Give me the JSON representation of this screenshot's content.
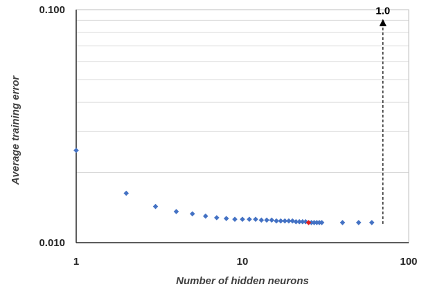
{
  "chart_data": {
    "type": "scatter",
    "title": "",
    "xlabel": "Number of hidden neurons",
    "ylabel": "Average training  error",
    "x_scale": "log",
    "y_scale": "log",
    "xlim": [
      1,
      100
    ],
    "ylim": [
      0.01,
      0.1
    ],
    "x_ticks": [
      1,
      10,
      100
    ],
    "x_tick_labels": [
      "1",
      "10",
      "100"
    ],
    "y_ticks": [
      0.01,
      0.1
    ],
    "y_tick_labels": [
      "0.010",
      "0.100"
    ],
    "grid": "horizontal minor gridlines",
    "legend": "none",
    "series": [
      {
        "color": "#4472c4",
        "marker": "diamond",
        "x": [
          1,
          2,
          3,
          4,
          5,
          6,
          7,
          8,
          9,
          10,
          11,
          12,
          13,
          14,
          15,
          16,
          17,
          18,
          19,
          20,
          21,
          22,
          23,
          24,
          26,
          27,
          28,
          29,
          30,
          40,
          50,
          60
        ],
        "y": [
          0.0249,
          0.0163,
          0.0143,
          0.0136,
          0.0133,
          0.013,
          0.0128,
          0.0127,
          0.0126,
          0.0126,
          0.0126,
          0.0126,
          0.0125,
          0.0125,
          0.0125,
          0.0124,
          0.0124,
          0.0124,
          0.0124,
          0.0124,
          0.0123,
          0.0123,
          0.0123,
          0.0123,
          0.0122,
          0.0122,
          0.0122,
          0.0122,
          0.0122,
          0.0122,
          0.0122,
          0.0122
        ]
      },
      {
        "color": "#e02020",
        "marker": "diamond",
        "x": [
          25
        ],
        "y": [
          0.0122
        ]
      }
    ],
    "annotations": [
      {
        "text": "1.0",
        "x": 70,
        "arrow": "dashed, pointing up",
        "arrow_from_y": 0.0122,
        "arrow_to_y": 0.088
      }
    ]
  }
}
